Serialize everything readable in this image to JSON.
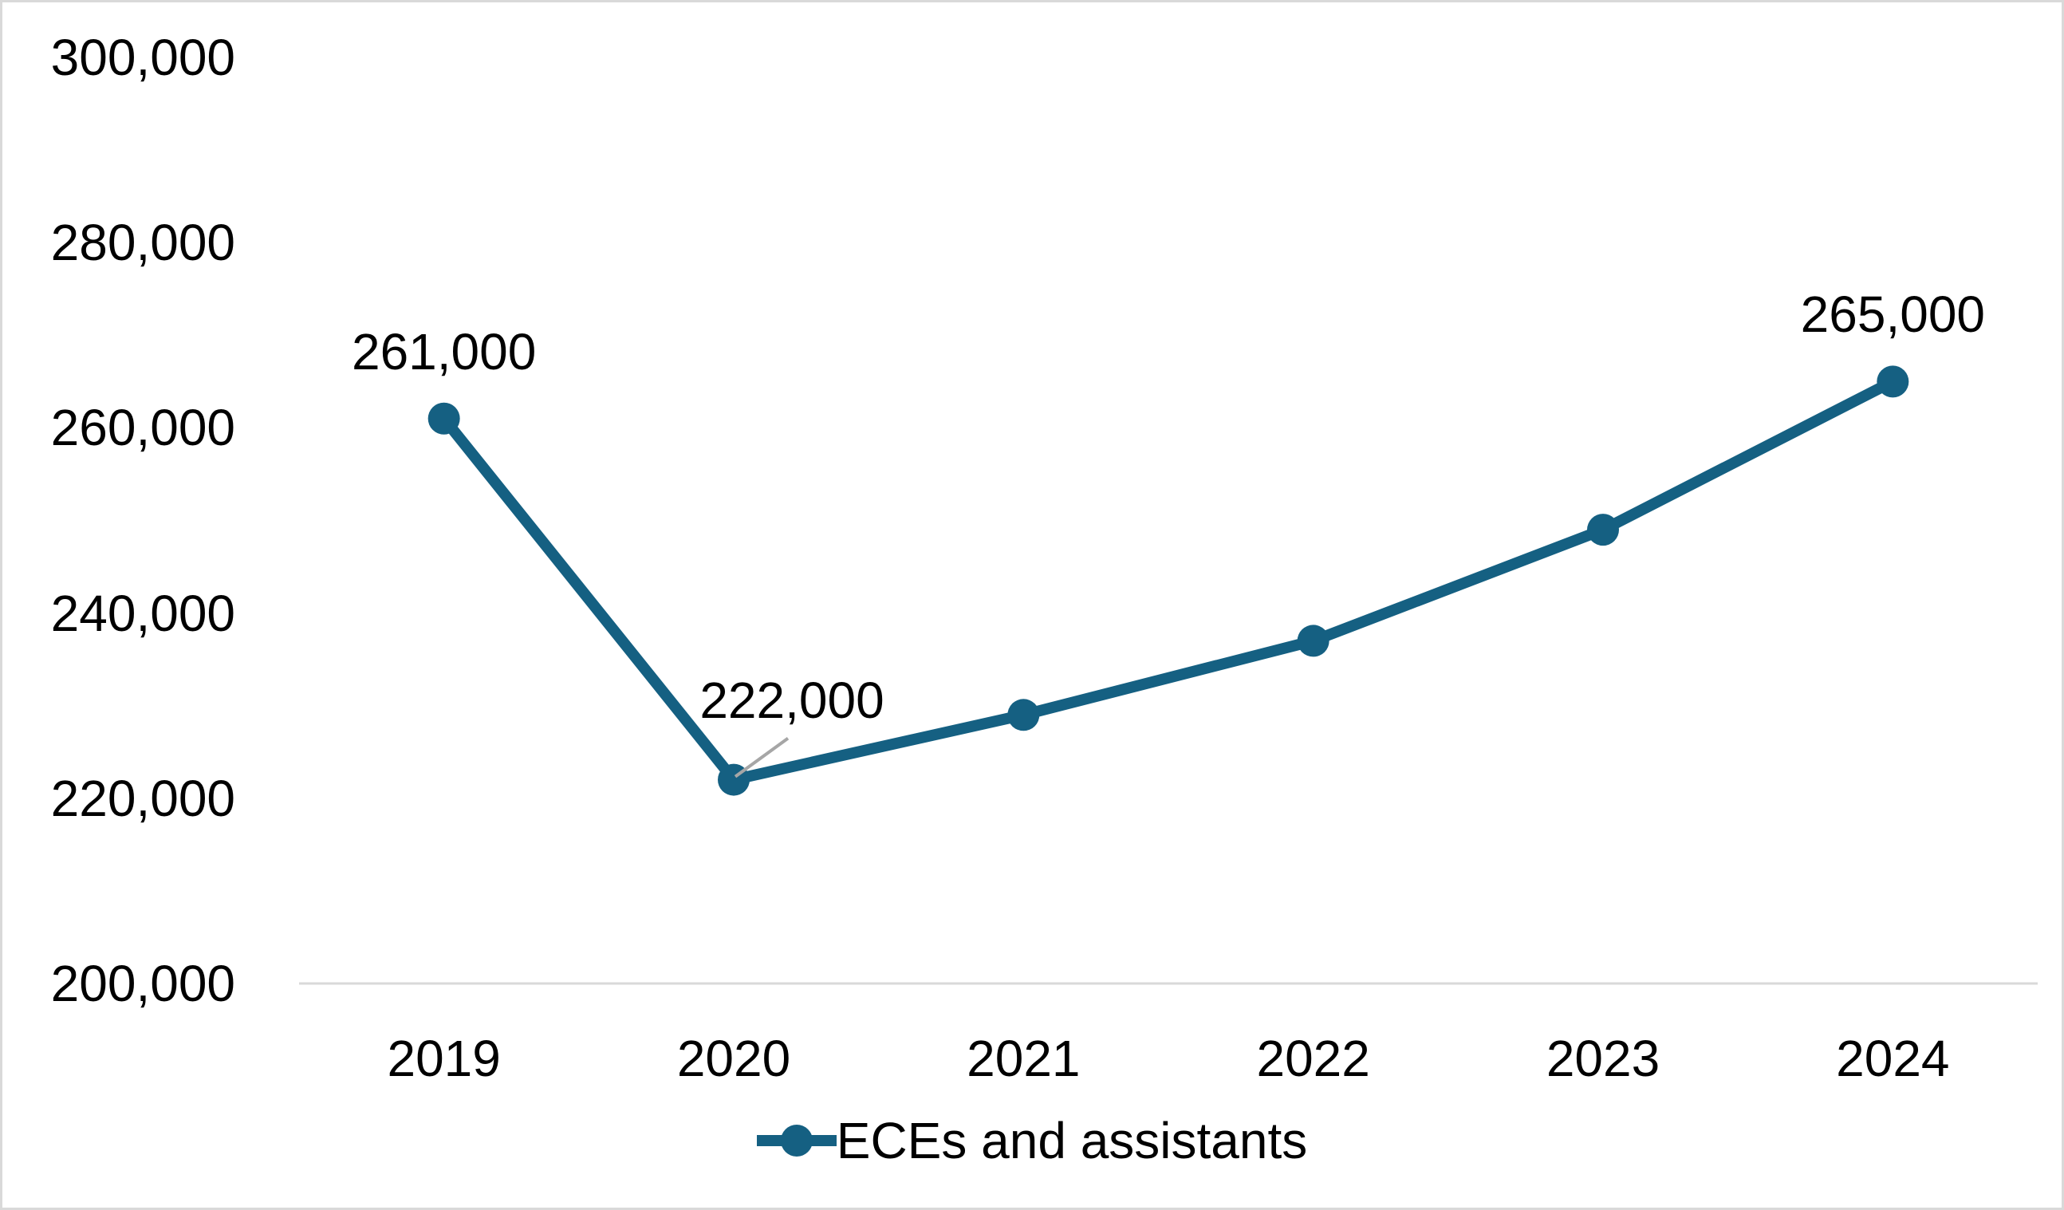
{
  "chart_data": {
    "type": "line",
    "categories": [
      "2019",
      "2020",
      "2021",
      "2022",
      "2023",
      "2024"
    ],
    "series": [
      {
        "name": "ECEs and assistants",
        "values": [
          261000,
          222000,
          229000,
          237000,
          249000,
          265000
        ]
      }
    ],
    "title": "",
    "xlabel": "",
    "ylabel": "",
    "ylim": [
      200000,
      300000
    ],
    "y_tick_step": 20000,
    "y_tick_labels": [
      "300,000",
      "280,000",
      "260,000",
      "240,000",
      "220,000",
      "200,000"
    ],
    "y_tick_values": [
      300000,
      280000,
      260000,
      240000,
      220000,
      200000
    ],
    "data_labels": [
      {
        "index": 0,
        "text": "261,000",
        "leader": false
      },
      {
        "index": 1,
        "text": "222,000",
        "leader": true
      },
      {
        "index": 5,
        "text": "265,000",
        "leader": false
      }
    ],
    "legend": {
      "label": "ECEs and assistants",
      "position": "bottom"
    },
    "grid": false,
    "colors": {
      "series": "#156082",
      "axis_line": "#D9D9D9",
      "leader_line": "#A6A6A6",
      "text": "#000000",
      "border": "#D9D9D9"
    }
  }
}
